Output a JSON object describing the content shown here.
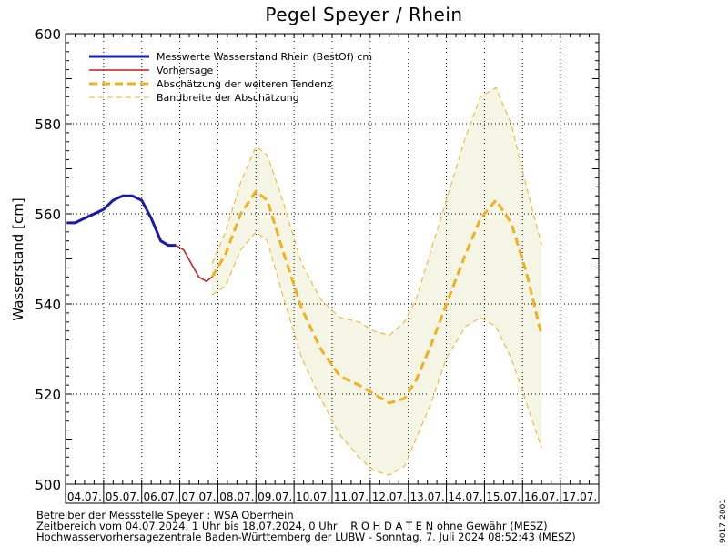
{
  "chart_data": {
    "type": "line",
    "title": "Pegel Speyer / Rhein",
    "ylabel": "Wasserstand [cm]",
    "xlabel": "",
    "ylim": [
      500,
      600
    ],
    "yticks": [
      500,
      520,
      540,
      560,
      580,
      600
    ],
    "x_ticks": [
      "04.07.",
      "05.07.",
      "06.07.",
      "07.07.",
      "08.07.",
      "09.07.",
      "10.07.",
      "11.07.",
      "12.07.",
      "13.07.",
      "14.07.",
      "15.07.",
      "16.07.",
      "17.07."
    ],
    "grid": true,
    "legend_position": "top-left",
    "colors": {
      "measured": "#1a1aa8",
      "forecast": "#c0201a",
      "tendency": "#f0b020",
      "band_fill": "#f5f5e6",
      "grid": "#000000"
    },
    "series": [
      {
        "name": "Messwerte Wasserstand Rhein (BestOf)   cm",
        "style": "thick-solid",
        "x": [
          4.04,
          4.25,
          4.5,
          4.75,
          5.0,
          5.25,
          5.5,
          5.75,
          6.0,
          6.25,
          6.4,
          6.5,
          6.7,
          6.9
        ],
        "values": [
          558,
          558,
          559,
          560,
          561,
          563,
          564,
          564,
          563,
          559,
          556,
          554,
          553,
          553
        ]
      },
      {
        "name": "Vorhersage",
        "style": "thin-solid",
        "x": [
          6.9,
          7.1,
          7.3,
          7.5,
          7.7,
          7.85
        ],
        "values": [
          553,
          552,
          549,
          546,
          545,
          546
        ]
      },
      {
        "name": "Abschätzung der weiteren Tendenz",
        "style": "thick-dashed",
        "x": [
          7.85,
          8.2,
          8.6,
          9.0,
          9.3,
          9.7,
          10.2,
          10.7,
          11.2,
          11.7,
          12.1,
          12.5,
          12.9,
          13.2,
          13.6,
          14.0,
          14.5,
          14.9,
          15.3,
          15.7,
          16.1,
          16.5
        ],
        "values": [
          546,
          551,
          560,
          565,
          563,
          552,
          539,
          530,
          524,
          522,
          520,
          518,
          519,
          523,
          531,
          540,
          551,
          559,
          563,
          558,
          547,
          533
        ]
      },
      {
        "name": "Bandbreite der Abschätzung",
        "style": "thin-dashed",
        "upper_x": [
          7.85,
          8.2,
          8.6,
          9.0,
          9.3,
          9.7,
          10.2,
          10.7,
          11.2,
          11.7,
          12.1,
          12.5,
          12.9,
          13.2,
          13.6,
          14.0,
          14.5,
          14.9,
          15.3,
          15.7,
          16.1,
          16.5
        ],
        "upper": [
          549,
          556,
          567,
          575,
          573,
          563,
          549,
          541,
          537,
          536,
          534,
          533,
          536,
          541,
          552,
          563,
          577,
          586,
          588,
          580,
          566,
          553
        ],
        "lower_x": [
          7.85,
          8.2,
          8.6,
          9.0,
          9.3,
          9.7,
          10.2,
          10.7,
          11.2,
          11.7,
          12.1,
          12.5,
          12.9,
          13.2,
          13.6,
          14.0,
          14.5,
          14.9,
          15.3,
          15.7,
          16.1,
          16.5
        ],
        "lower": [
          542,
          544,
          552,
          556,
          554,
          542,
          528,
          519,
          511,
          506,
          503,
          502,
          504,
          510,
          518,
          528,
          535,
          537,
          535,
          528,
          518,
          508
        ]
      }
    ]
  },
  "footer": {
    "line1": "Betreiber der Messstelle Speyer : WSA Oberrhein",
    "line2": "Zeitbereich vom 04.07.2024, 1 Uhr bis 18.07.2024, 0 Uhr    R O H D A T E N ohne Gewähr (MESZ)",
    "line3": "Hochwasservorhersagezentrale Baden-Württemberg der LUBW - Sonntag, 7. Juli 2024 08:52:43 (MESZ)"
  },
  "side_code": "9017-2001"
}
